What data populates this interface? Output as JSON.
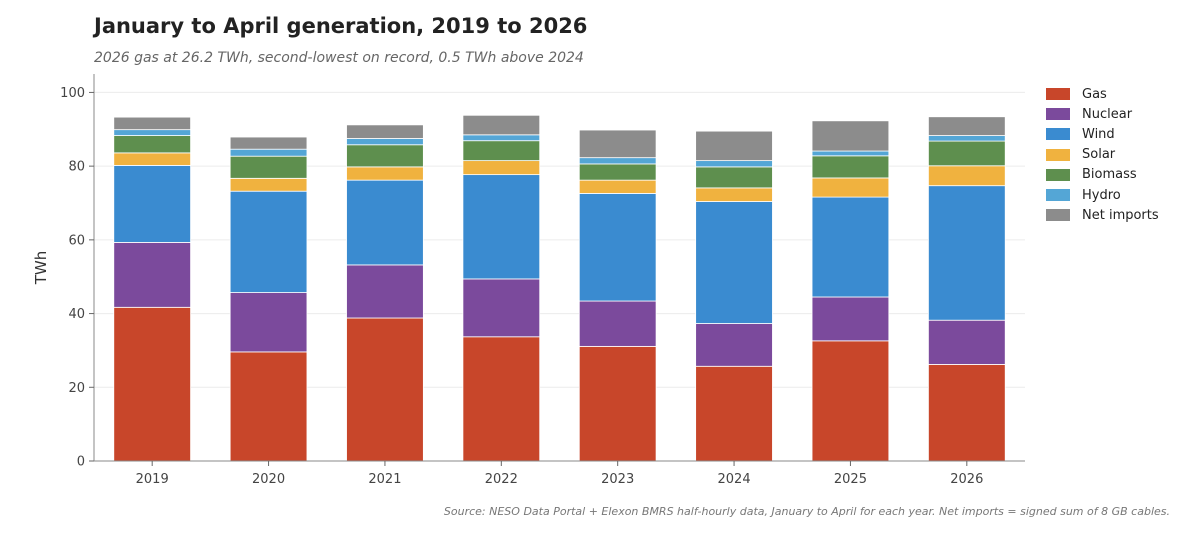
{
  "chart_data": {
    "type": "bar",
    "stacked": true,
    "title": "January to April generation, 2019 to 2026",
    "subtitle": "2026 gas at 26.2 TWh, second-lowest on record, 0.5 TWh above 2024",
    "source": "Source: NESO Data Portal + Elexon BMRS half-hourly data, January to April for each year. Net imports = signed sum of 8 GB cables.",
    "xlabel": "",
    "ylabel": "TWh",
    "ylim": [
      0,
      105
    ],
    "yticks": [
      0,
      20,
      40,
      60,
      80,
      100
    ],
    "grid": true,
    "legend_position": "right",
    "categories": [
      "2019",
      "2020",
      "2021",
      "2022",
      "2023",
      "2024",
      "2025",
      "2026"
    ],
    "series": [
      {
        "name": "Gas",
        "color": "#c8462a",
        "values": [
          41.7,
          29.6,
          38.8,
          33.7,
          31.1,
          25.7,
          32.6,
          26.2
        ]
      },
      {
        "name": "Nuclear",
        "color": "#7b4a9c",
        "values": [
          17.6,
          16.1,
          14.4,
          15.7,
          12.3,
          11.6,
          11.9,
          12.0
        ]
      },
      {
        "name": "Wind",
        "color": "#3a8bd0",
        "values": [
          20.9,
          27.5,
          23.0,
          28.3,
          29.2,
          33.1,
          27.1,
          36.5
        ]
      },
      {
        "name": "Solar",
        "color": "#f0b23f",
        "values": [
          3.4,
          3.5,
          3.6,
          3.8,
          3.6,
          3.7,
          5.2,
          5.4
        ]
      },
      {
        "name": "Biomass",
        "color": "#5e8f4e",
        "values": [
          4.7,
          6.0,
          6.0,
          5.4,
          4.4,
          5.7,
          6.0,
          6.7
        ]
      },
      {
        "name": "Hydro",
        "color": "#54a6d6",
        "values": [
          1.6,
          1.9,
          1.7,
          1.6,
          1.7,
          1.7,
          1.3,
          1.5
        ]
      },
      {
        "name": "Net imports",
        "color": "#8c8c8c",
        "values": [
          3.4,
          3.3,
          3.7,
          5.3,
          7.5,
          8.0,
          8.2,
          5.1
        ]
      }
    ]
  }
}
